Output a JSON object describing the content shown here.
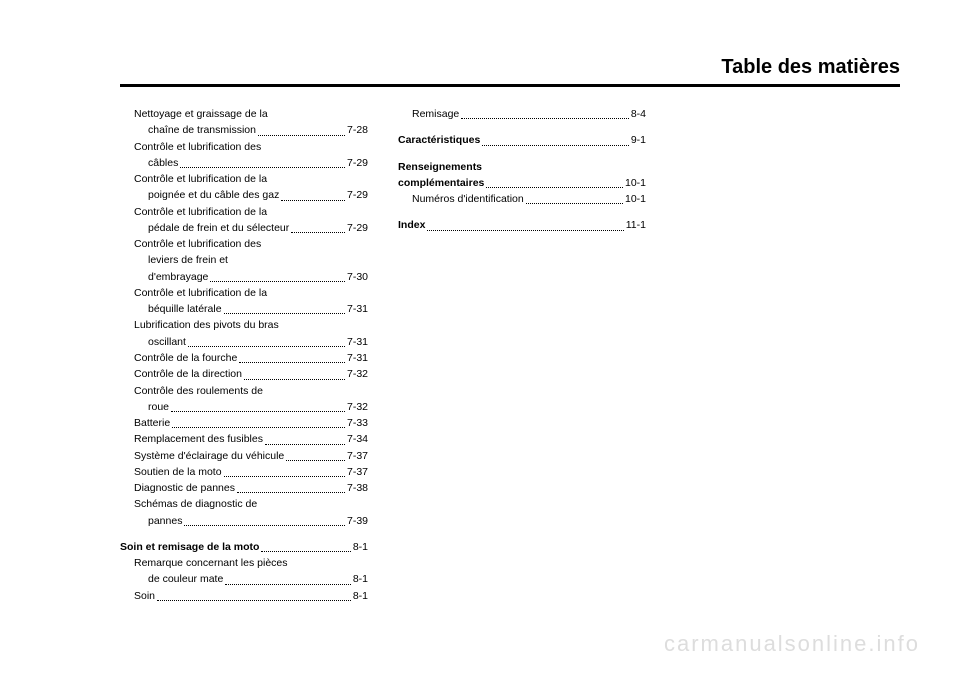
{
  "page_title": "Table des matières",
  "watermark": "carmanualsonline.info",
  "col1": [
    {
      "label_lines": [
        "Nettoyage et graissage de la",
        "chaîne de transmission"
      ],
      "page": "7-28",
      "sub": true
    },
    {
      "label_lines": [
        "Contrôle et lubrification des",
        "câbles"
      ],
      "page": "7-29",
      "sub": true
    },
    {
      "label_lines": [
        "Contrôle et lubrification de la",
        "poignée et du câble des gaz"
      ],
      "page": "7-29",
      "sub": true
    },
    {
      "label_lines": [
        "Contrôle et lubrification de la",
        "pédale de frein et du sélecteur"
      ],
      "page": "7-29",
      "sub": true
    },
    {
      "label_lines": [
        "Contrôle et lubrification des",
        "leviers de frein et",
        "d'embrayage"
      ],
      "page": "7-30",
      "sub": true
    },
    {
      "label_lines": [
        "Contrôle et lubrification de la",
        "béquille latérale"
      ],
      "page": "7-31",
      "sub": true
    },
    {
      "label_lines": [
        "Lubrification des pivots du bras",
        "oscillant"
      ],
      "page": "7-31",
      "sub": true
    },
    {
      "label_lines": [
        "Contrôle de la fourche"
      ],
      "page": "7-31",
      "sub": true
    },
    {
      "label_lines": [
        "Contrôle de la direction"
      ],
      "page": "7-32",
      "sub": true
    },
    {
      "label_lines": [
        "Contrôle des roulements de",
        "roue"
      ],
      "page": "7-32",
      "sub": true
    },
    {
      "label_lines": [
        "Batterie"
      ],
      "page": "7-33",
      "sub": true
    },
    {
      "label_lines": [
        "Remplacement des fusibles"
      ],
      "page": "7-34",
      "sub": true
    },
    {
      "label_lines": [
        "Système d'éclairage du véhicule"
      ],
      "page": "7-37",
      "sub": true
    },
    {
      "label_lines": [
        "Soutien de la moto"
      ],
      "page": "7-37",
      "sub": true
    },
    {
      "label_lines": [
        "Diagnostic de pannes"
      ],
      "page": "7-38",
      "sub": true
    },
    {
      "label_lines": [
        "Schémas de diagnostic de",
        "pannes"
      ],
      "page": "7-39",
      "sub": true
    },
    {
      "spacer": true
    },
    {
      "label_lines": [
        "Soin et remisage de la moto"
      ],
      "page": "8-1",
      "bold": true
    },
    {
      "label_lines": [
        "Remarque concernant les pièces",
        "de couleur mate"
      ],
      "page": "8-1",
      "sub": true
    },
    {
      "label_lines": [
        "Soin"
      ],
      "page": "8-1",
      "sub": true
    }
  ],
  "col2": [
    {
      "label_lines": [
        "Remisage"
      ],
      "page": "8-4",
      "sub": true
    },
    {
      "spacer": true
    },
    {
      "label_lines": [
        "Caractéristiques"
      ],
      "page": "9-1",
      "bold": true
    },
    {
      "spacer": true
    },
    {
      "label_lines": [
        "Renseignements"
      ],
      "plain_bold": true
    },
    {
      "label_lines": [
        "complémentaires"
      ],
      "page": "10-1",
      "bold": true
    },
    {
      "label_lines": [
        "Numéros d'identification"
      ],
      "page": "10-1",
      "sub": true
    },
    {
      "spacer": true
    },
    {
      "label_lines": [
        "Index"
      ],
      "page": "11-1",
      "bold": true
    }
  ]
}
